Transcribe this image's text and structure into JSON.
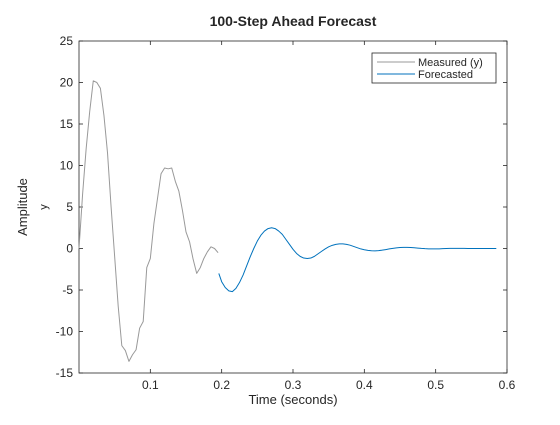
{
  "chart_data": {
    "type": "line",
    "title": "100-Step Ahead Forecast",
    "xlabel": "Time (seconds)",
    "ylabel": "Amplitude",
    "ylabel_channel": "y",
    "xlim": [
      0,
      0.6
    ],
    "ylim": [
      -15,
      25
    ],
    "xticks": [
      0.1,
      0.2,
      0.3,
      0.4,
      0.5,
      0.6
    ],
    "xtick_labels": [
      "0.1",
      "0.2",
      "0.3",
      "0.4",
      "0.5",
      "0.6"
    ],
    "yticks": [
      -15,
      -10,
      -5,
      0,
      5,
      10,
      15,
      20,
      25
    ],
    "ytick_labels": [
      "-15",
      "-10",
      "-5",
      "0",
      "5",
      "10",
      "15",
      "20",
      "25"
    ],
    "grid": false,
    "legend_position": "top-right",
    "series": [
      {
        "name": "Measured (y)",
        "color": "#999999",
        "x": [
          0.0,
          0.005,
          0.01,
          0.015,
          0.02,
          0.025,
          0.03,
          0.035,
          0.04,
          0.045,
          0.05,
          0.055,
          0.06,
          0.065,
          0.07,
          0.075,
          0.08,
          0.085,
          0.09,
          0.095,
          0.1,
          0.105,
          0.11,
          0.115,
          0.12,
          0.125,
          0.13,
          0.135,
          0.14,
          0.145,
          0.15,
          0.155,
          0.16,
          0.165,
          0.17,
          0.175,
          0.18,
          0.185,
          0.19,
          0.195
        ],
        "values": [
          0.0,
          6.5,
          12.0,
          16.5,
          20.2,
          20.0,
          19.3,
          16.0,
          11.5,
          5.0,
          -1.0,
          -7.0,
          -11.7,
          -12.3,
          -13.6,
          -12.8,
          -12.2,
          -9.6,
          -8.8,
          -2.3,
          -1.2,
          3.0,
          6.0,
          9.0,
          9.7,
          9.6,
          9.7,
          8.1,
          6.9,
          4.6,
          2.0,
          0.8,
          -1.3,
          -3.0,
          -2.3,
          -1.2,
          -0.4,
          0.2,
          0.0,
          -0.5
        ]
      },
      {
        "name": "Forecasted",
        "color": "#0072BD",
        "x": [
          0.196,
          0.2,
          0.205,
          0.21,
          0.215,
          0.22,
          0.225,
          0.23,
          0.235,
          0.24,
          0.245,
          0.25,
          0.255,
          0.26,
          0.265,
          0.27,
          0.275,
          0.28,
          0.285,
          0.29,
          0.295,
          0.3,
          0.305,
          0.31,
          0.315,
          0.32,
          0.325,
          0.33,
          0.335,
          0.34,
          0.345,
          0.35,
          0.355,
          0.36,
          0.365,
          0.37,
          0.375,
          0.38,
          0.385,
          0.39,
          0.395,
          0.4,
          0.405,
          0.41,
          0.415,
          0.42,
          0.425,
          0.43,
          0.435,
          0.44,
          0.445,
          0.45,
          0.455,
          0.46,
          0.465,
          0.47,
          0.475,
          0.48,
          0.485,
          0.49,
          0.495,
          0.5,
          0.505,
          0.51,
          0.515,
          0.52,
          0.525,
          0.53,
          0.535,
          0.54,
          0.545,
          0.55,
          0.555,
          0.56,
          0.565,
          0.57,
          0.575,
          0.58,
          0.585
        ],
        "values": [
          -3.0,
          -4.0,
          -4.7,
          -5.1,
          -5.2,
          -4.8,
          -4.1,
          -3.2,
          -2.1,
          -1.0,
          0.0,
          0.9,
          1.6,
          2.1,
          2.4,
          2.5,
          2.4,
          2.1,
          1.7,
          1.1,
          0.5,
          -0.1,
          -0.6,
          -0.95,
          -1.15,
          -1.2,
          -1.15,
          -0.95,
          -0.65,
          -0.35,
          -0.05,
          0.2,
          0.38,
          0.5,
          0.55,
          0.55,
          0.5,
          0.4,
          0.25,
          0.1,
          -0.05,
          -0.15,
          -0.22,
          -0.27,
          -0.28,
          -0.26,
          -0.2,
          -0.13,
          -0.05,
          0.02,
          0.08,
          0.12,
          0.14,
          0.14,
          0.12,
          0.09,
          0.05,
          0.01,
          -0.02,
          -0.04,
          -0.05,
          -0.05,
          -0.04,
          -0.02,
          0.0,
          0.01,
          0.02,
          0.02,
          0.02,
          0.01,
          0.0,
          0.0,
          0.0,
          0.0,
          0.0,
          0.0,
          0.0,
          0.0,
          0.0
        ]
      }
    ]
  }
}
